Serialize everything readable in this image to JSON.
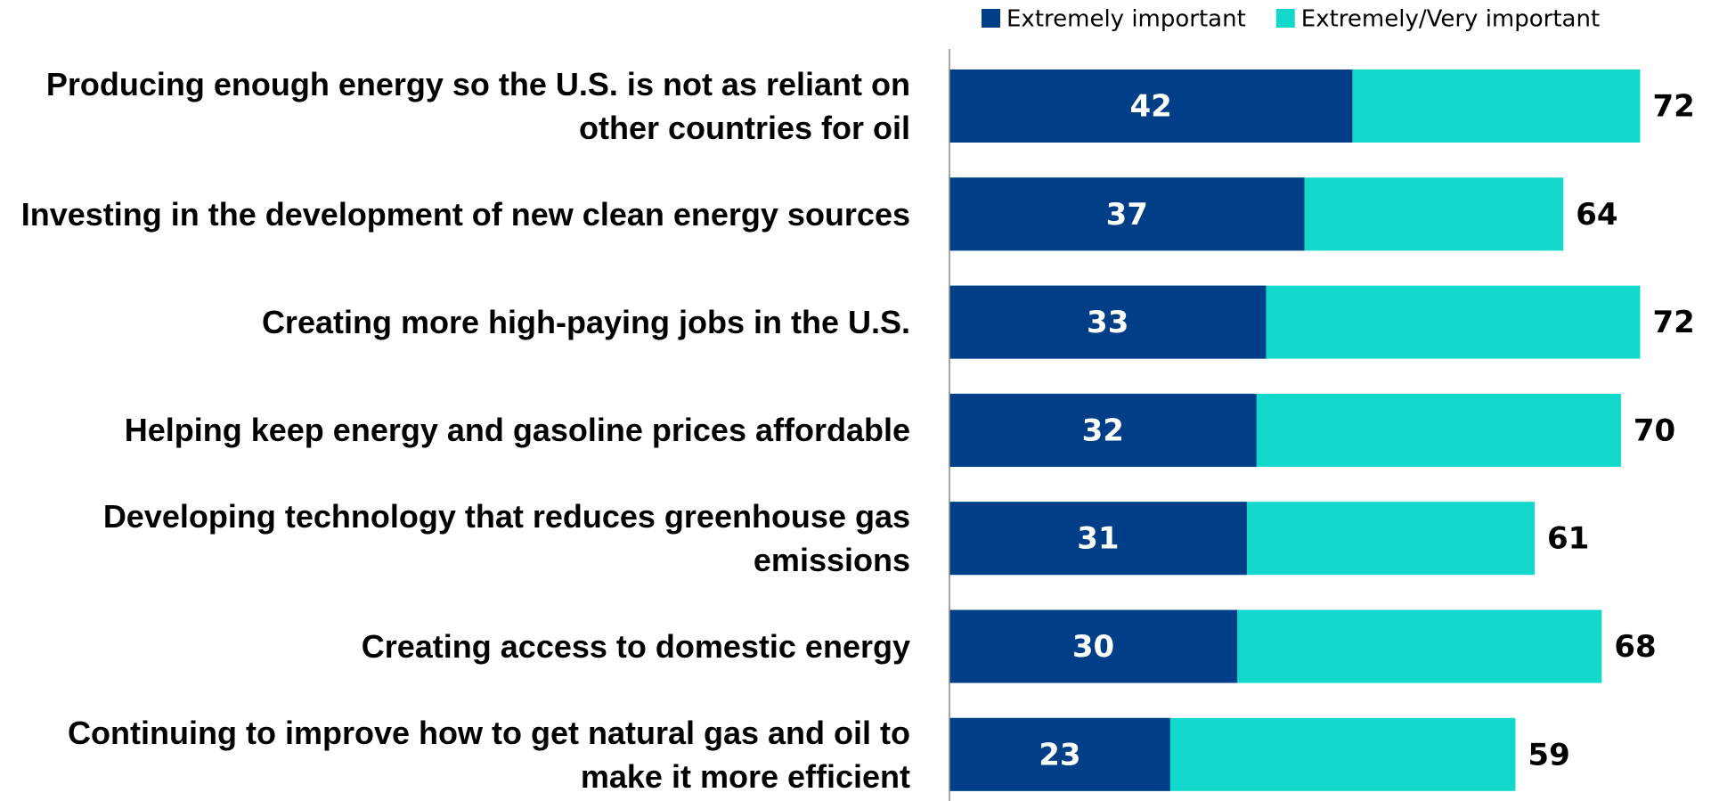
{
  "chart_data": {
    "type": "bar",
    "orientation": "horizontal",
    "categories": [
      "Producing enough energy so the U.S. is not as reliant on other countries for oil",
      "Investing in the development of new clean energy sources",
      "Creating more high-paying jobs in the U.S.",
      "Helping keep energy and gasoline prices affordable",
      "Developing technology that reduces greenhouse gas emissions",
      "Creating access to domestic energy",
      "Continuing to improve how to get natural gas and oil to make it more efficient"
    ],
    "series": [
      {
        "name": "Extremely important",
        "color": "#003f87",
        "values": [
          42,
          37,
          33,
          32,
          31,
          30,
          23
        ]
      },
      {
        "name": "Extremely/Very important",
        "color": "#12d8cc",
        "values": [
          72,
          64,
          72,
          70,
          61,
          68,
          59
        ]
      }
    ],
    "legend": "top-right"
  }
}
